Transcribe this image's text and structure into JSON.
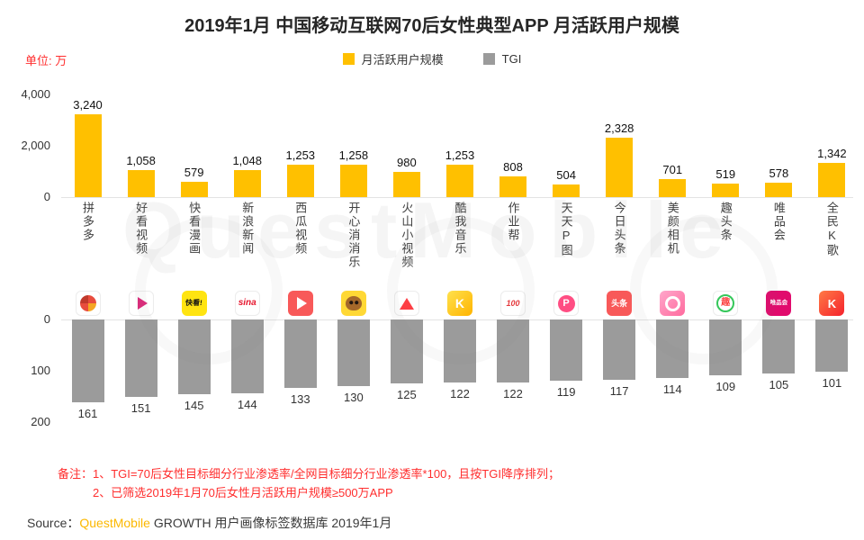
{
  "title": "2019年1月 中国移动互联网70后女性典型APP 月活跃用户规模",
  "unit_label": "单位: 万",
  "legend": {
    "mau": "月活跃用户规模",
    "tgi": "TGI"
  },
  "watermark": "QuestMobile",
  "colors": {
    "bar_yellow": "#FFC000",
    "bar_gray": "#9B9B9B",
    "note_red": "#FF2E2E",
    "brand_orange": "#FCB800"
  },
  "chart_data": {
    "type": "bar",
    "title": "2019年1月 中国移动互联网70后女性典型APP 月活跃用户规模",
    "unit": "万",
    "legend_position": "top-center",
    "categories": [
      "拼多多",
      "好看视频",
      "快看漫画",
      "新浪新闻",
      "西瓜视频",
      "开心消消乐",
      "火山小视频",
      "酷我音乐",
      "作业帮",
      "天天P图",
      "今日头条",
      "美颜相机",
      "趣头条",
      "唯品会",
      "全民K歌"
    ],
    "series": [
      {
        "name": "月活跃用户规模",
        "color": "#FFC000",
        "values": [
          3240,
          1058,
          579,
          1048,
          1253,
          1258,
          980,
          1253,
          808,
          504,
          2328,
          701,
          519,
          578,
          1342
        ],
        "value_labels": [
          "3,240",
          "1,058",
          "579",
          "1,048",
          "1,253",
          "1,258",
          "980",
          "1,253",
          "808",
          "504",
          "2,328",
          "701",
          "519",
          "578",
          "1,342"
        ],
        "ylim": [
          0,
          4000
        ],
        "axis_ticks": [
          "0",
          "2,000",
          "4,000"
        ],
        "direction": "up"
      },
      {
        "name": "TGI",
        "color": "#9B9B9B",
        "values": [
          161,
          151,
          145,
          144,
          133,
          130,
          125,
          122,
          122,
          119,
          117,
          114,
          109,
          105,
          101
        ],
        "value_labels": [
          "161",
          "151",
          "145",
          "144",
          "133",
          "130",
          "125",
          "122",
          "122",
          "119",
          "117",
          "114",
          "109",
          "105",
          "101"
        ],
        "ylim": [
          0,
          200
        ],
        "axis_ticks": [
          "0",
          "100",
          "200"
        ],
        "direction": "down"
      }
    ],
    "apps": [
      {
        "name": "拼多多",
        "mau": 3240,
        "mau_label": "3,240",
        "tgi": 161,
        "tgi_label": "161",
        "icon": "pinduoduo-icon"
      },
      {
        "name": "好看视频",
        "mau": 1058,
        "mau_label": "1,058",
        "tgi": 151,
        "tgi_label": "151",
        "icon": "haokan-video-icon"
      },
      {
        "name": "快看漫画",
        "mau": 579,
        "mau_label": "579",
        "tgi": 145,
        "tgi_label": "145",
        "icon": "kuaikan-manhua-icon",
        "icon_text": "快看!"
      },
      {
        "name": "新浪新闻",
        "mau": 1048,
        "mau_label": "1,048",
        "tgi": 144,
        "tgi_label": "144",
        "icon": "sina-news-icon",
        "icon_text": "sina"
      },
      {
        "name": "西瓜视频",
        "mau": 1253,
        "mau_label": "1,253",
        "tgi": 133,
        "tgi_label": "133",
        "icon": "xigua-video-icon"
      },
      {
        "name": "开心消消乐",
        "mau": 1258,
        "mau_label": "1,258",
        "tgi": 130,
        "tgi_label": "130",
        "icon": "kaixin-xiaoxiaole-icon"
      },
      {
        "name": "火山小视频",
        "mau": 980,
        "mau_label": "980",
        "tgi": 125,
        "tgi_label": "125",
        "icon": "huoshan-video-icon"
      },
      {
        "name": "酷我音乐",
        "mau": 1253,
        "mau_label": "1,253",
        "tgi": 122,
        "tgi_label": "122",
        "icon": "kuwo-music-icon",
        "icon_text": "K"
      },
      {
        "name": "作业帮",
        "mau": 808,
        "mau_label": "808",
        "tgi": 122,
        "tgi_label": "122",
        "icon": "zuoyebang-icon",
        "icon_text": "100"
      },
      {
        "name": "天天P图",
        "mau": 504,
        "mau_label": "504",
        "tgi": 119,
        "tgi_label": "119",
        "icon": "tiantian-ptu-icon",
        "icon_text": "P"
      },
      {
        "name": "今日头条",
        "mau": 2328,
        "mau_label": "2,328",
        "tgi": 117,
        "tgi_label": "117",
        "icon": "toutiao-icon",
        "icon_text": "头条"
      },
      {
        "name": "美颜相机",
        "mau": 701,
        "mau_label": "701",
        "tgi": 114,
        "tgi_label": "114",
        "icon": "meiyan-camera-icon"
      },
      {
        "name": "趣头条",
        "mau": 519,
        "mau_label": "519",
        "tgi": 109,
        "tgi_label": "109",
        "icon": "qutoutiao-icon",
        "icon_text": "趣"
      },
      {
        "name": "唯品会",
        "mau": 578,
        "mau_label": "578",
        "tgi": 105,
        "tgi_label": "105",
        "icon": "vipshop-icon",
        "icon_text": "唯品会"
      },
      {
        "name": "全民K歌",
        "mau": 1342,
        "mau_label": "1,342",
        "tgi": 101,
        "tgi_label": "101",
        "icon": "quanmin-kge-icon",
        "icon_text": "K"
      }
    ]
  },
  "notes": {
    "line1": "备注：1、TGI=70后女性目标细分行业渗透率/全网目标细分行业渗透率*100，且按TGI降序排列；",
    "line2": "2、已筛选2019年1月70后女性月活跃用户规模≥500万APP"
  },
  "source": {
    "prefix": "Source：",
    "brand": "QuestMobile",
    "suffix": " GROWTH 用户画像标签数据库 2019年1月"
  }
}
